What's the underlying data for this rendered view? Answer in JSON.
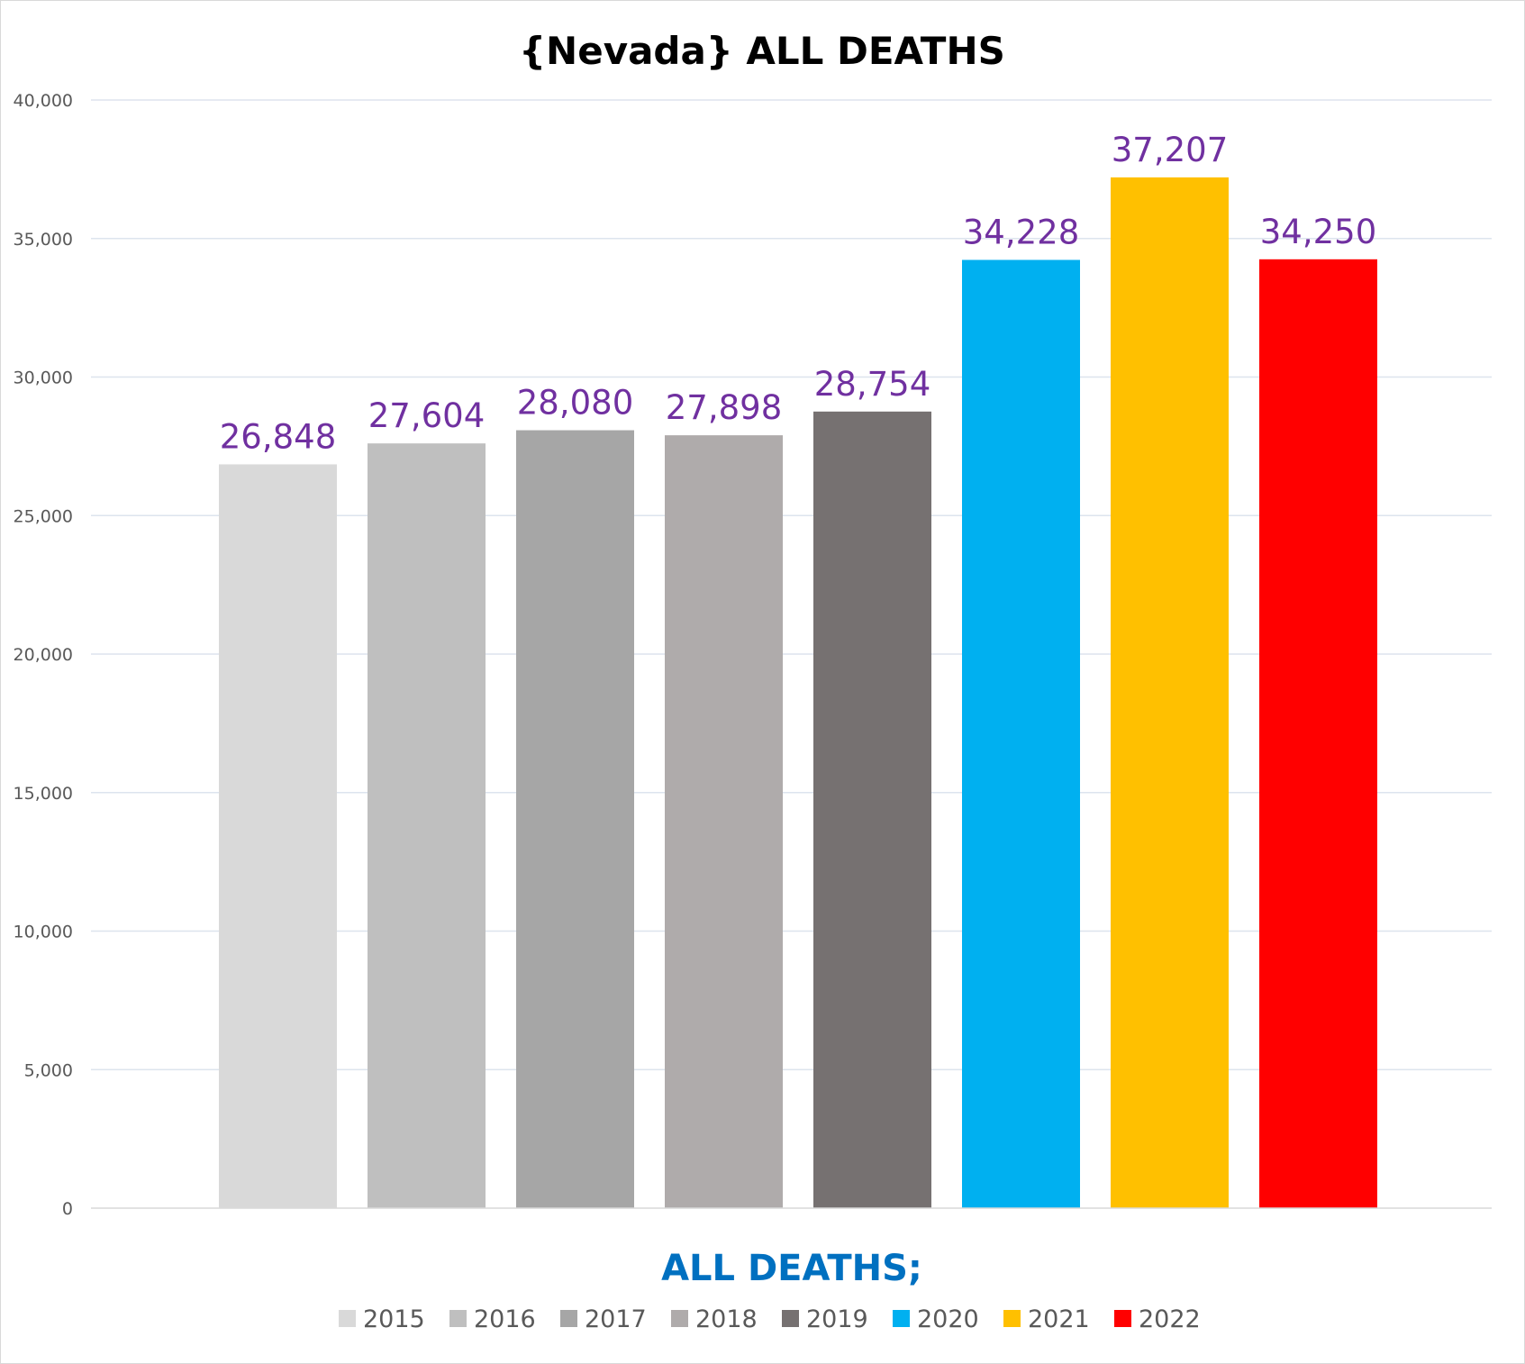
{
  "chart_data": {
    "type": "bar",
    "title": "{Nevada}  ALL DEATHS",
    "xlabel": "ALL DEATHS;",
    "ylabel": "",
    "ylim": [
      0,
      40000
    ],
    "yticks": [
      0,
      5000,
      10000,
      15000,
      20000,
      25000,
      30000,
      35000,
      40000
    ],
    "ytick_labels": [
      "0",
      "5,000",
      "10,000",
      "15,000",
      "20,000",
      "25,000",
      "30,000",
      "35,000",
      "40,000"
    ],
    "grid": true,
    "legend_position": "bottom",
    "series": [
      {
        "name": "2015",
        "value": 26848,
        "label": "26,848",
        "color": "#d9d9d9"
      },
      {
        "name": "2016",
        "value": 27604,
        "label": "27,604",
        "color": "#bfbfbf"
      },
      {
        "name": "2017",
        "value": 28080,
        "label": "28,080",
        "color": "#a6a6a6"
      },
      {
        "name": "2018",
        "value": 27898,
        "label": "27,898",
        "color": "#afabab"
      },
      {
        "name": "2019",
        "value": 28754,
        "label": "28,754",
        "color": "#767171"
      },
      {
        "name": "2020",
        "value": 34228,
        "label": "34,228",
        "color": "#00b0f0"
      },
      {
        "name": "2021",
        "value": 37207,
        "label": "37,207",
        "color": "#ffc000"
      },
      {
        "name": "2022",
        "value": 34250,
        "label": "34,250",
        "color": "#ff0000"
      }
    ],
    "colors": {
      "data_label": "#7030a0",
      "axis_title": "#0070c0",
      "gridline": "#dde4ee"
    }
  }
}
